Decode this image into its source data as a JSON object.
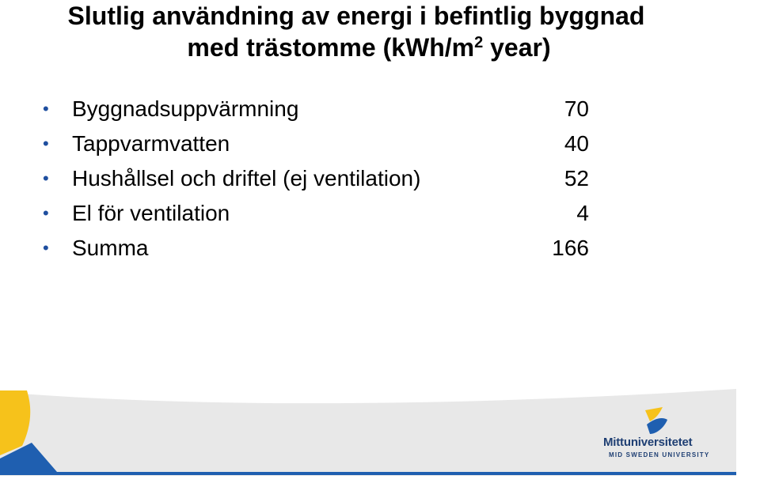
{
  "slide": {
    "title_line1": "Slutlig användning av energi i befintlig byggnad",
    "title_line2_prefix": "med trästomme (kWh/m",
    "title_line2_sup": "2",
    "title_line2_suffix": " year)"
  },
  "items": [
    {
      "label": "Byggnadsuppvärmning",
      "value": "70"
    },
    {
      "label": "Tappvarmvatten",
      "value": "40"
    },
    {
      "label": "Hushållsel och driftel (ej ventilation)",
      "value": "52"
    },
    {
      "label": "El för ventilation",
      "value": "4"
    },
    {
      "label": "Summa",
      "value": "166"
    }
  ],
  "logo": {
    "name": "Mittuniversitetet",
    "subtitle": "MID SWEDEN UNIVERSITY"
  },
  "colors": {
    "accent_yellow": "#f6c21b",
    "accent_blue": "#1f5fb0",
    "footer_gray": "#e6e6e6",
    "logo_navy": "#1f3f73"
  }
}
